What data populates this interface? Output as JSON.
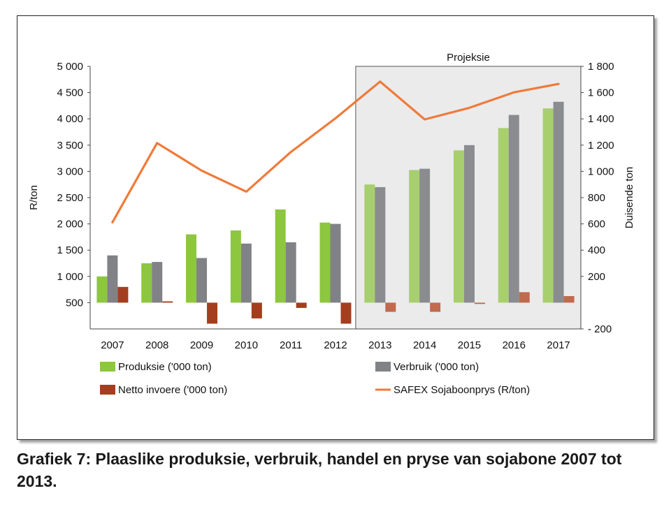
{
  "caption": "Grafiek 7: Plaaslike produksie, verbruik, handel en pryse van sojabone 2007 tot 2013.",
  "chart_data": {
    "type": "bar",
    "categories": [
      "2007",
      "2008",
      "2009",
      "2010",
      "2011",
      "2012",
      "2013",
      "2014",
      "2015",
      "2016",
      "2017"
    ],
    "projection_label": "Projeksie",
    "projection_start": "2013",
    "y_left": {
      "label": "R/ton",
      "ylim": [
        0,
        5000
      ],
      "ticks": [
        500,
        1000,
        1500,
        2000,
        2500,
        3000,
        3500,
        4000,
        4500,
        5000
      ],
      "tick_labels": [
        "500",
        "1 000",
        "1 500",
        "2 000",
        "2 500",
        "3 000",
        "3 500",
        "4 000",
        "4 500",
        "5 000"
      ]
    },
    "y_right": {
      "label": "Duisende ton",
      "ylim": [
        -200,
        1800
      ],
      "ticks": [
        -200,
        200,
        400,
        600,
        800,
        1000,
        1200,
        1400,
        1600,
        1800
      ],
      "tick_labels": [
        "- 200",
        "200",
        "400",
        "600",
        "800",
        "1 000",
        "1 200",
        "1 400",
        "1 600",
        "1 800"
      ]
    },
    "series": [
      {
        "name": "Produksie ('000 ton)",
        "type": "bar",
        "axis": "right",
        "color": "#8dc63f",
        "projection_color": "#a8cf6e",
        "values": [
          200,
          300,
          520,
          550,
          710,
          610,
          900,
          1010,
          1160,
          1330,
          1480
        ]
      },
      {
        "name": "Verbruik ('000 ton)",
        "type": "bar",
        "axis": "right",
        "color": "#808285",
        "projection_color": "#8a8c8f",
        "values": [
          360,
          310,
          340,
          450,
          460,
          600,
          880,
          1020,
          1200,
          1430,
          1530
        ]
      },
      {
        "name": "Netto invoere ('000 ton)",
        "type": "bar",
        "axis": "right",
        "color": "#a33f1f",
        "projection_color": "#c06a4e",
        "values": [
          120,
          10,
          -160,
          -120,
          -40,
          -160,
          -70,
          -70,
          -10,
          80,
          50
        ]
      },
      {
        "name": "SAFEX Sojaboonprys (R/ton)",
        "type": "line",
        "axis": "left",
        "color": "#f07a3a",
        "values": [
          2030,
          3540,
          3015,
          2615,
          3370,
          4010,
          4710,
          3990,
          4210,
          4505,
          4665
        ]
      }
    ],
    "legend": "bottom"
  }
}
